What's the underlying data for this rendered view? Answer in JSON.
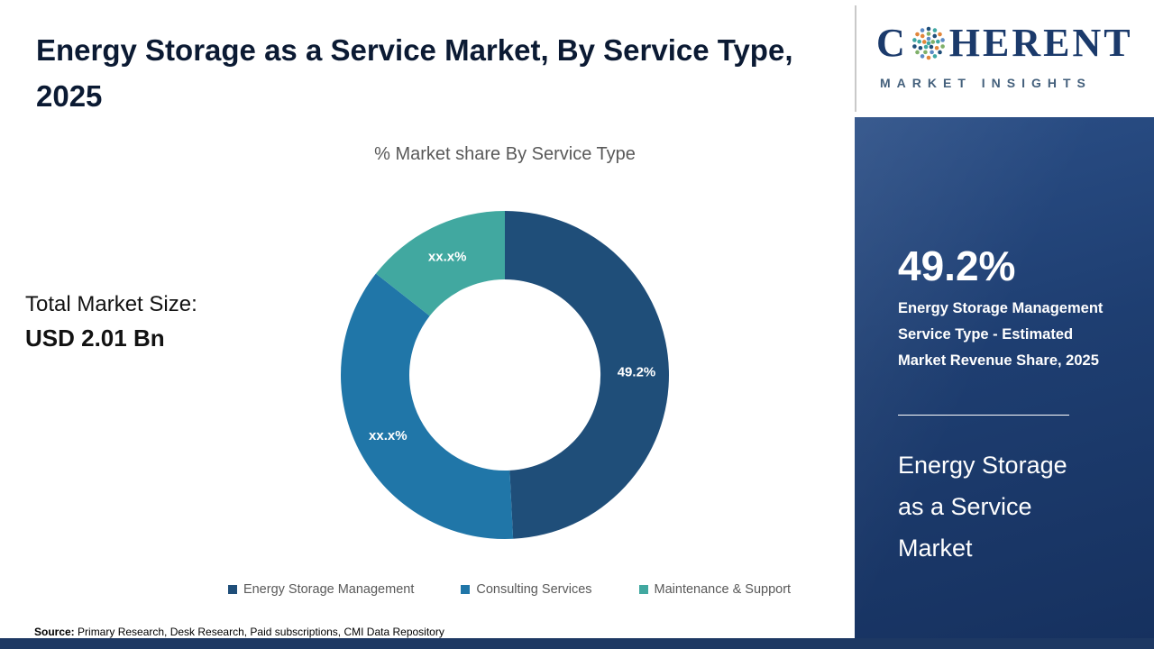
{
  "header": {
    "title": "Energy Storage as a Service Market, By Service Type, 2025"
  },
  "chart_data": {
    "type": "pie",
    "donut": true,
    "title": "% Market share By Service Type",
    "legend_position": "bottom",
    "segments": [
      {
        "name": "Energy Storage Management",
        "value": 49.2,
        "label": "49.2%",
        "color": "#1f4e79"
      },
      {
        "name": "Consulting Services",
        "value": 36.4,
        "label": "xx.x%",
        "color": "#2076a8"
      },
      {
        "name": "Maintenance & Support",
        "value": 14.4,
        "label": "xx.x%",
        "color": "#41a8a0"
      }
    ]
  },
  "totals": {
    "label": "Total Market Size:",
    "value": "USD 2.01 Bn"
  },
  "source": {
    "prefix": "Source:",
    "text": " Primary Research, Desk Research, Paid subscriptions, CMI Data Repository"
  },
  "sidebar": {
    "stat_value": "49.2%",
    "desc_bold": "Energy Storage Management",
    "desc_rest": " Service Type - Estimated Market Revenue Share, 2025",
    "market_name": "Energy Storage as a Service Market"
  },
  "logo": {
    "word_start": "C",
    "word_end": "HERENT",
    "subtitle": "MARKET INSIGHTS"
  }
}
